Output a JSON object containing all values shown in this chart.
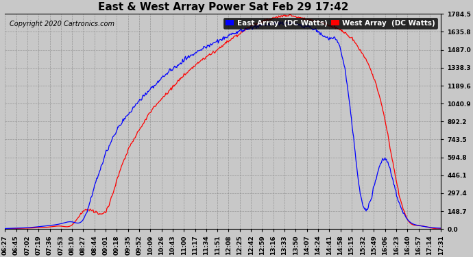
{
  "title": "East & West Array Power Sat Feb 29 17:42",
  "copyright": "Copyright 2020 Cartronics.com",
  "legend_east": "East Array  (DC Watts)",
  "legend_west": "West Array  (DC Watts)",
  "east_color": "#0000ff",
  "west_color": "#ff0000",
  "background_color": "#c8c8c8",
  "plot_bg_color": "#c8c8c8",
  "grid_color": "#888888",
  "yticks": [
    0.0,
    148.7,
    297.4,
    446.1,
    594.8,
    743.5,
    892.2,
    1040.9,
    1189.6,
    1338.3,
    1487.0,
    1635.8,
    1784.5
  ],
  "ymax": 1784.5,
  "ymin": 0.0,
  "xtick_labels": [
    "06:27",
    "06:45",
    "07:02",
    "07:19",
    "07:36",
    "07:53",
    "08:10",
    "08:27",
    "08:44",
    "09:01",
    "09:18",
    "09:35",
    "09:52",
    "10:09",
    "10:26",
    "10:43",
    "11:00",
    "11:17",
    "11:34",
    "11:51",
    "12:08",
    "12:25",
    "12:42",
    "12:59",
    "13:16",
    "13:33",
    "13:50",
    "14:07",
    "14:24",
    "14:41",
    "14:58",
    "15:15",
    "15:32",
    "15:49",
    "16:06",
    "16:23",
    "16:40",
    "16:57",
    "17:14",
    "17:31"
  ],
  "title_fontsize": 11,
  "tick_fontsize": 6.5,
  "copyright_fontsize": 7,
  "legend_fontsize": 7.5,
  "east_data": [
    5,
    8,
    12,
    20,
    30,
    45,
    60,
    80,
    350,
    620,
    820,
    950,
    1060,
    1160,
    1250,
    1330,
    1400,
    1460,
    1510,
    1560,
    1600,
    1640,
    1670,
    1690,
    1700,
    1710,
    1700,
    1680,
    1640,
    1580,
    1500,
    900,
    200,
    350,
    580,
    300,
    80,
    30,
    15,
    8
  ],
  "west_data": [
    3,
    5,
    8,
    12,
    18,
    25,
    35,
    148,
    148,
    148,
    400,
    650,
    820,
    970,
    1080,
    1180,
    1270,
    1360,
    1430,
    1490,
    1560,
    1620,
    1680,
    1720,
    1750,
    1770,
    1760,
    1740,
    1720,
    1690,
    1650,
    1580,
    1450,
    1250,
    900,
    400,
    80,
    30,
    12,
    5
  ]
}
